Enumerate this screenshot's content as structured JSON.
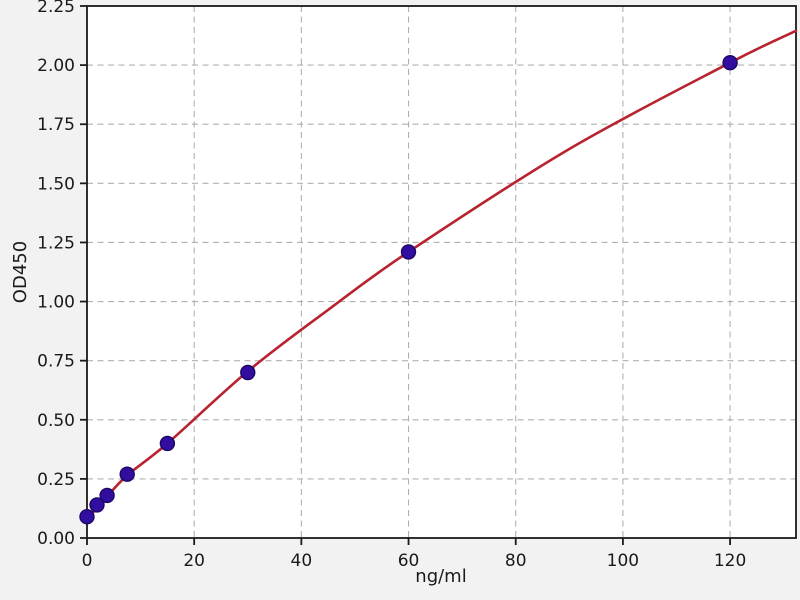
{
  "chart_data": {
    "type": "scatter",
    "title": "",
    "xlabel": "ng/ml",
    "ylabel": "OD450",
    "xlim": [
      0,
      132.3
    ],
    "ylim": [
      0,
      2.25
    ],
    "grid": true,
    "legend": "none",
    "x_ticks": [
      {
        "value": 0,
        "label": "0"
      },
      {
        "value": 20,
        "label": "20"
      },
      {
        "value": 40,
        "label": "40"
      },
      {
        "value": 60,
        "label": "60"
      },
      {
        "value": 80,
        "label": "80"
      },
      {
        "value": 100,
        "label": "100"
      },
      {
        "value": 120,
        "label": "120"
      }
    ],
    "y_ticks": [
      {
        "value": 0.0,
        "label": "0.00"
      },
      {
        "value": 0.25,
        "label": "0.25"
      },
      {
        "value": 0.5,
        "label": "0.50"
      },
      {
        "value": 0.75,
        "label": "0.75"
      },
      {
        "value": 1.0,
        "label": "1.00"
      },
      {
        "value": 1.25,
        "label": "1.25"
      },
      {
        "value": 1.5,
        "label": "1.50"
      },
      {
        "value": 1.75,
        "label": "1.75"
      },
      {
        "value": 2.0,
        "label": "2.00"
      },
      {
        "value": 2.25,
        "label": "2.25"
      }
    ],
    "series": [
      {
        "name": "standard-points",
        "type": "scatter",
        "marker_radius": 7,
        "points": [
          {
            "x": 0,
            "y": 0.09
          },
          {
            "x": 1.875,
            "y": 0.14
          },
          {
            "x": 3.75,
            "y": 0.18
          },
          {
            "x": 7.5,
            "y": 0.27
          },
          {
            "x": 15,
            "y": 0.4
          },
          {
            "x": 30,
            "y": 0.7
          },
          {
            "x": 60,
            "y": 1.21
          },
          {
            "x": 120,
            "y": 2.01
          }
        ]
      },
      {
        "name": "fit-curve",
        "type": "line",
        "line_width": 2.6,
        "points": [
          {
            "x": 0,
            "y": 0.085
          },
          {
            "x": 1.875,
            "y": 0.125
          },
          {
            "x": 3.75,
            "y": 0.175
          },
          {
            "x": 7.5,
            "y": 0.265
          },
          {
            "x": 15,
            "y": 0.4
          },
          {
            "x": 30,
            "y": 0.705
          },
          {
            "x": 45,
            "y": 0.965
          },
          {
            "x": 60,
            "y": 1.21
          },
          {
            "x": 90,
            "y": 1.645
          },
          {
            "x": 120,
            "y": 2.01
          },
          {
            "x": 132.3,
            "y": 2.145
          }
        ]
      }
    ],
    "colors": {
      "figure_bg": "#f2f2f2",
      "plot_bg": "#ffffff",
      "grid": "#b0b0b0",
      "spine": "#1a1a1a",
      "tick_text": "#1a1a1a",
      "marker_fill": "#310da0",
      "marker_edge": "#1c0766",
      "curve": "#b82330"
    }
  }
}
